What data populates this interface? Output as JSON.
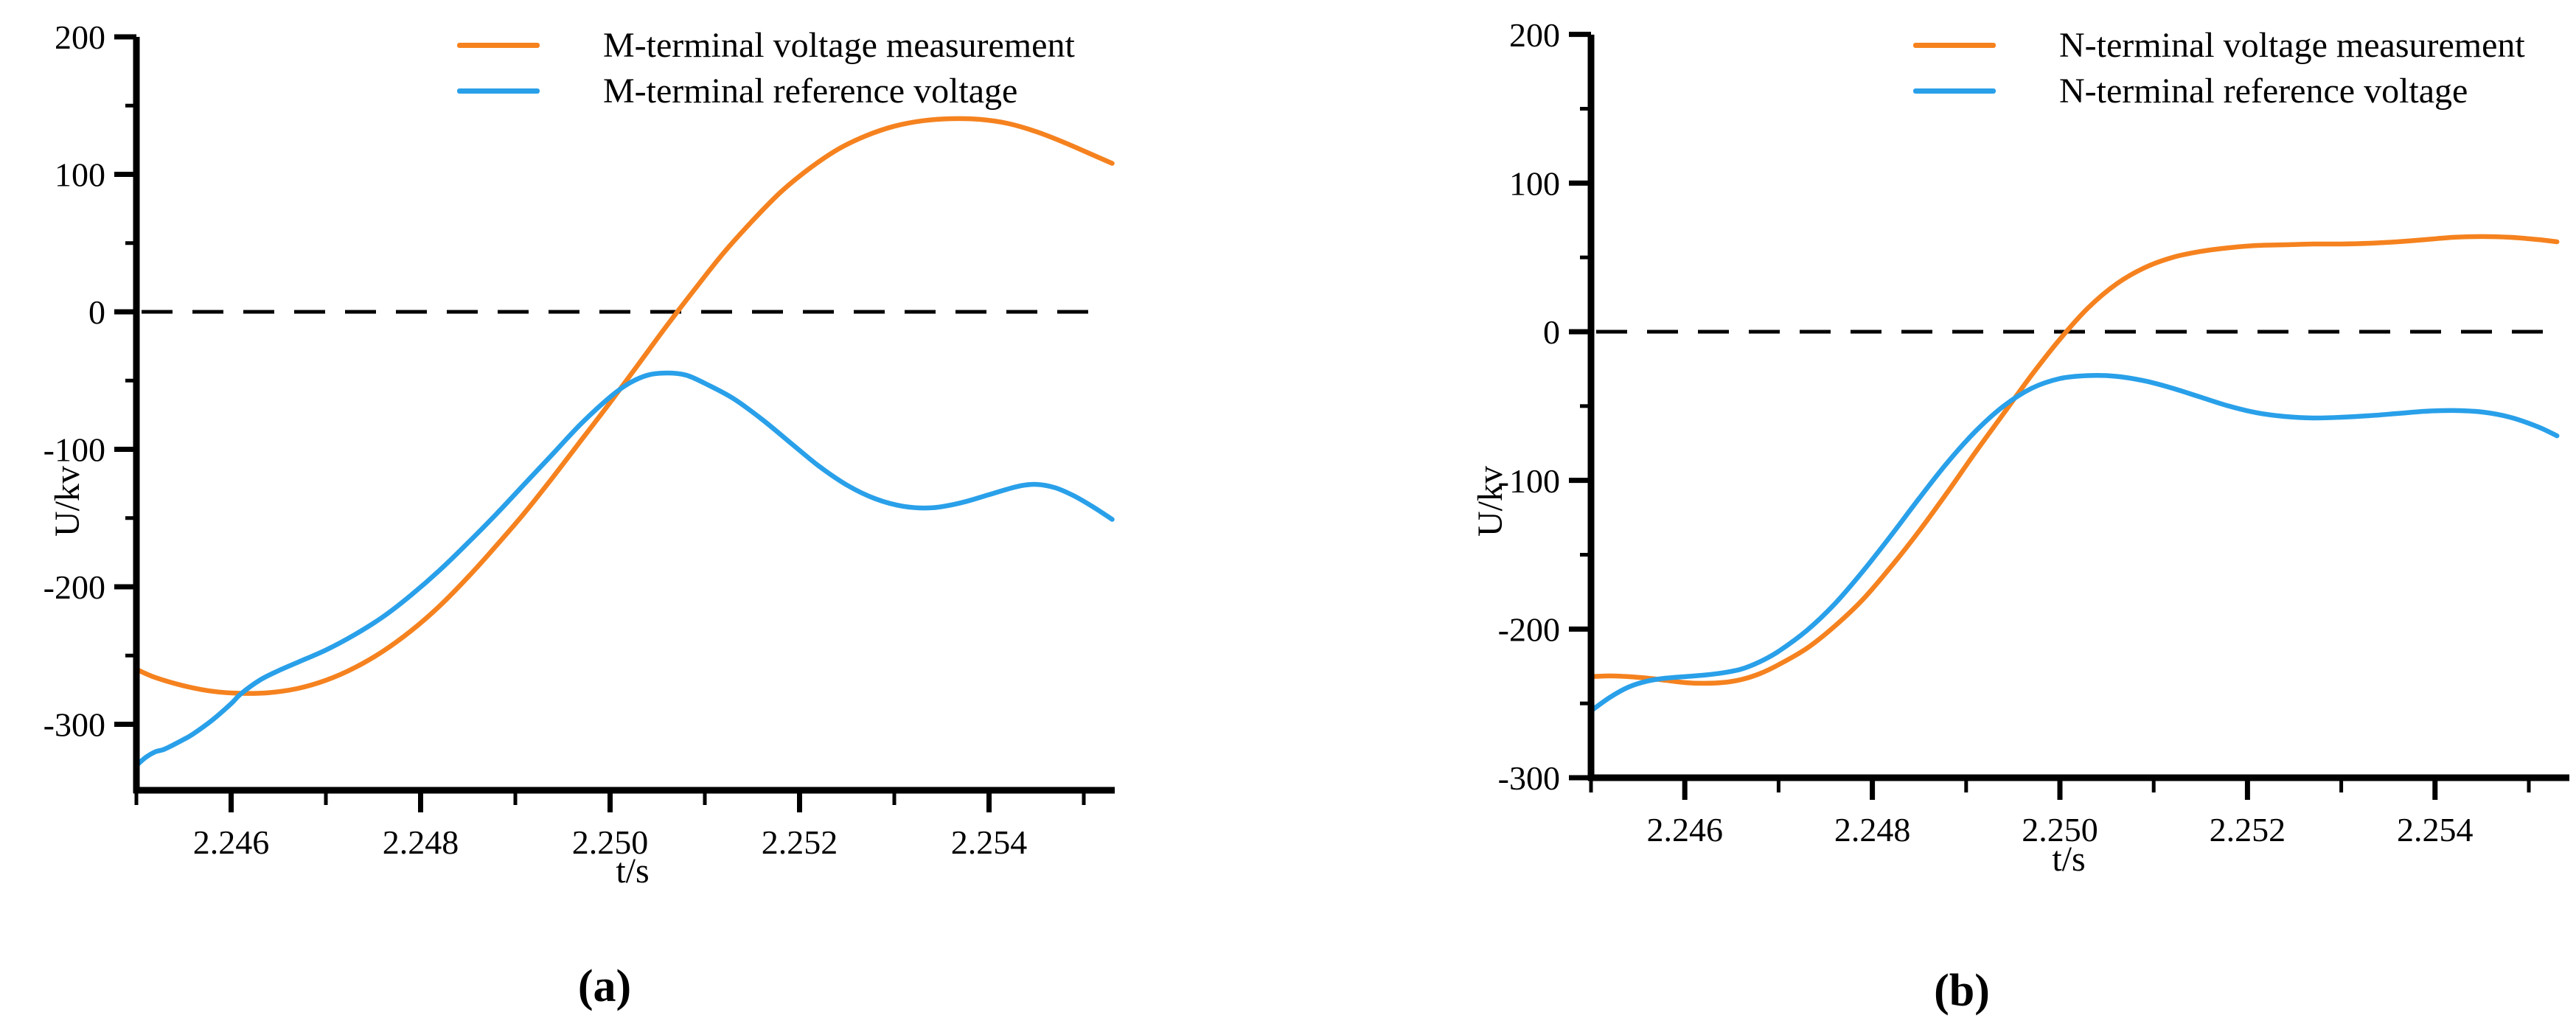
{
  "page": {
    "background": "#FFFFFF"
  },
  "colors": {
    "measurement": "#F5821F",
    "reference": "#29A0E9",
    "axis": "#000000",
    "zero_line": "#000000"
  },
  "chart_data": [
    {
      "id": "a",
      "type": "line",
      "caption": "(a)",
      "xlabel": "t/s",
      "ylabel": "U/kv",
      "xlim": [
        2.245,
        2.2553
      ],
      "ylim": [
        -348,
        200
      ],
      "grid": false,
      "legend_position": "top",
      "x_tick_labels": [
        "2.246",
        "2.248",
        "2.250",
        "2.252",
        "2.254"
      ],
      "x_tick_values": [
        2.246,
        2.248,
        2.25,
        2.252,
        2.254
      ],
      "x_minor_tick_values": [
        2.245,
        2.247,
        2.249,
        2.251,
        2.253,
        2.255
      ],
      "y_tick_labels": [
        "200",
        "100",
        "0",
        "-100",
        "-200",
        "-300"
      ],
      "y_tick_values": [
        200,
        100,
        0,
        -100,
        -200,
        -300
      ],
      "y_minor_tick_values": [
        150,
        50,
        -50,
        -150,
        -250
      ],
      "zero_line": {
        "value": 0,
        "style": "dashed"
      },
      "series": [
        {
          "name": "M-terminal voltage measurement",
          "color_key": "measurement",
          "x": [
            2.245,
            2.2452,
            2.2455,
            2.2458,
            2.2461,
            2.2464,
            2.2467,
            2.247,
            2.2473,
            2.2476,
            2.2479,
            2.2482,
            2.2485,
            2.2488,
            2.2491,
            2.2494,
            2.2497,
            2.25,
            2.2503,
            2.2506,
            2.2509,
            2.2512,
            2.2515,
            2.2518,
            2.2521,
            2.2524,
            2.2527,
            2.253,
            2.2533,
            2.2536,
            2.2539,
            2.2542,
            2.2545,
            2.2548,
            2.2551,
            2.2553
          ],
          "y": [
            -260,
            -266,
            -272,
            -276,
            -277.5,
            -277,
            -274,
            -268,
            -259,
            -247,
            -232,
            -214,
            -193,
            -170,
            -146,
            -120,
            -93,
            -66,
            -38,
            -10,
            17,
            43,
            66,
            87,
            104,
            118,
            128,
            135,
            139,
            140.5,
            140,
            137,
            131,
            123,
            114,
            108
          ]
        },
        {
          "name": "M-terminal reference voltage",
          "color_key": "reference",
          "x": [
            2.245,
            2.2451,
            2.2452,
            2.2453,
            2.2455,
            2.2456,
            2.2458,
            2.246,
            2.2461,
            2.2463,
            2.2465,
            2.2467,
            2.247,
            2.2473,
            2.2476,
            2.2479,
            2.2482,
            2.2485,
            2.2488,
            2.2491,
            2.2494,
            2.2497,
            2.25,
            2.2502,
            2.2504,
            2.2506,
            2.2508,
            2.251,
            2.2513,
            2.2516,
            2.2519,
            2.2522,
            2.2525,
            2.2528,
            2.2531,
            2.2534,
            2.2537,
            2.254,
            2.2543,
            2.2545,
            2.2547,
            2.2549,
            2.2551,
            2.2553
          ],
          "y": [
            -330,
            -324,
            -320,
            -318,
            -311,
            -307,
            -297,
            -285,
            -278,
            -268,
            -261,
            -255,
            -246,
            -235,
            -222,
            -206,
            -188,
            -168,
            -147,
            -125,
            -103,
            -81,
            -62,
            -52,
            -46,
            -44.5,
            -46,
            -52,
            -63,
            -78,
            -95,
            -112,
            -126,
            -136,
            -141.5,
            -142.5,
            -139,
            -133,
            -127,
            -125.5,
            -128,
            -134,
            -142,
            -151
          ]
        }
      ]
    },
    {
      "id": "b",
      "type": "line",
      "caption": "(b)",
      "xlabel": "t/s",
      "ylabel": "U/kv",
      "xlim": [
        2.245,
        2.2553
      ],
      "ylim": [
        -300,
        200
      ],
      "grid": false,
      "legend_position": "top",
      "x_tick_labels": [
        "2.246",
        "2.248",
        "2.250",
        "2.252",
        "2.254"
      ],
      "x_tick_values": [
        2.246,
        2.248,
        2.25,
        2.252,
        2.254
      ],
      "x_minor_tick_values": [
        2.245,
        2.247,
        2.249,
        2.251,
        2.253,
        2.255
      ],
      "y_tick_labels": [
        "200",
        "100",
        "0",
        "-100",
        "-200",
        "-300"
      ],
      "y_tick_values": [
        200,
        100,
        0,
        -100,
        -200,
        -300
      ],
      "y_minor_tick_values": [
        150,
        50,
        -50,
        -150,
        -250
      ],
      "zero_line": {
        "value": 0,
        "style": "dashed"
      },
      "series": [
        {
          "name": "N-terminal voltage measurement",
          "color_key": "measurement",
          "x": [
            2.245,
            2.2452,
            2.2454,
            2.2456,
            2.2458,
            2.246,
            2.2462,
            2.2464,
            2.2466,
            2.2468,
            2.247,
            2.2473,
            2.2476,
            2.2479,
            2.2482,
            2.2485,
            2.2488,
            2.2491,
            2.2494,
            2.2497,
            2.25,
            2.2503,
            2.2506,
            2.2509,
            2.2512,
            2.2515,
            2.2518,
            2.2521,
            2.2524,
            2.2527,
            2.253,
            2.2533,
            2.2536,
            2.2539,
            2.2542,
            2.2545,
            2.2548,
            2.2551,
            2.2553
          ],
          "y": [
            -232,
            -231.5,
            -232,
            -233,
            -234.5,
            -236,
            -236.5,
            -236,
            -234,
            -230,
            -224,
            -213,
            -198,
            -180,
            -158,
            -134,
            -108,
            -81,
            -55,
            -29,
            -5,
            16,
            32,
            43,
            50,
            54,
            56.5,
            58,
            58.5,
            59,
            59,
            59.5,
            60.5,
            62,
            63.5,
            64,
            63.5,
            62,
            60.5
          ]
        },
        {
          "name": "N-terminal reference voltage",
          "color_key": "reference",
          "x": [
            2.245,
            2.2452,
            2.2454,
            2.2456,
            2.2458,
            2.246,
            2.2462,
            2.2464,
            2.2466,
            2.2468,
            2.247,
            2.2473,
            2.2476,
            2.2479,
            2.2482,
            2.2485,
            2.2488,
            2.2491,
            2.2494,
            2.2497,
            2.25,
            2.2503,
            2.2506,
            2.2509,
            2.2512,
            2.2515,
            2.2518,
            2.2521,
            2.2524,
            2.2527,
            2.253,
            2.2533,
            2.2536,
            2.2539,
            2.2542,
            2.2545,
            2.2548,
            2.2551,
            2.2553
          ],
          "y": [
            -255,
            -246,
            -239,
            -235,
            -233,
            -232,
            -231,
            -229.5,
            -227,
            -222,
            -215,
            -201,
            -183,
            -161,
            -137,
            -112,
            -88,
            -67,
            -50,
            -38,
            -31.5,
            -29.5,
            -30,
            -33,
            -38,
            -44,
            -50,
            -54.5,
            -57,
            -58,
            -57.5,
            -56.5,
            -55,
            -53.5,
            -53,
            -54,
            -57.5,
            -64,
            -70
          ]
        }
      ]
    }
  ]
}
